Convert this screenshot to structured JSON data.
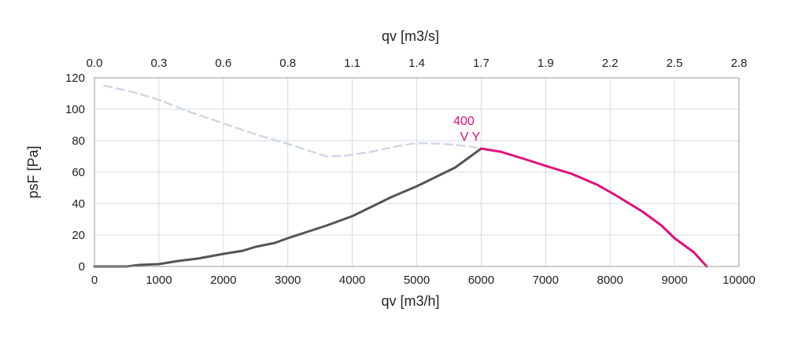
{
  "chart_data": {
    "type": "line",
    "x_label": "qv [m3/h]",
    "x2_label": "qv [m3/s]",
    "y_label": "psF [Pa]",
    "xlim": [
      0,
      10000
    ],
    "ylim": [
      0,
      120
    ],
    "x_ticks": [
      "0",
      "1000",
      "2000",
      "3000",
      "4000",
      "5000",
      "6000",
      "7000",
      "8000",
      "9000",
      "10000"
    ],
    "x2_ticks": [
      "0.0",
      "0.3",
      "0.6",
      "0.8",
      "1.1",
      "1.4",
      "1.7",
      "1.9",
      "2.2",
      "2.5",
      "2.8"
    ],
    "y_ticks": [
      "0",
      "20",
      "40",
      "60",
      "80",
      "100",
      "120"
    ],
    "grid": true,
    "annotation": {
      "line1": "400",
      "line2": "V Y",
      "x": 6000,
      "y": 75
    },
    "series": [
      {
        "role": "system-curve",
        "color": "#555555",
        "style": "solid",
        "points": [
          [
            0,
            0
          ],
          [
            500,
            0
          ],
          [
            700,
            1
          ],
          [
            1000,
            1.5
          ],
          [
            1300,
            3.5
          ],
          [
            1600,
            5
          ],
          [
            2000,
            8
          ],
          [
            2300,
            10
          ],
          [
            2500,
            12.5
          ],
          [
            2800,
            15
          ],
          [
            3000,
            18
          ],
          [
            3300,
            22
          ],
          [
            3600,
            26
          ],
          [
            4000,
            32
          ],
          [
            4300,
            38
          ],
          [
            4600,
            44
          ],
          [
            5000,
            51
          ],
          [
            5300,
            57
          ],
          [
            5600,
            63
          ],
          [
            6000,
            75
          ]
        ]
      },
      {
        "role": "fan-curve",
        "color": "#e0107a",
        "style": "solid",
        "points": [
          [
            6000,
            75
          ],
          [
            6300,
            73
          ],
          [
            6700,
            68
          ],
          [
            7000,
            64
          ],
          [
            7400,
            59
          ],
          [
            7800,
            52
          ],
          [
            8100,
            45
          ],
          [
            8500,
            35
          ],
          [
            8800,
            26
          ],
          [
            9000,
            18
          ],
          [
            9300,
            9
          ],
          [
            9500,
            0
          ]
        ]
      },
      {
        "role": "stall-region",
        "color": "#d0d8e6",
        "style": "dashed",
        "points": [
          [
            150,
            115
          ],
          [
            600,
            111
          ],
          [
            1000,
            106
          ],
          [
            1500,
            98
          ],
          [
            2000,
            91
          ],
          [
            2500,
            84
          ],
          [
            3000,
            78
          ],
          [
            3300,
            74
          ],
          [
            3600,
            70
          ],
          [
            3900,
            70.5
          ],
          [
            4300,
            73
          ],
          [
            4700,
            76.5
          ],
          [
            5000,
            78.5
          ],
          [
            5400,
            78
          ],
          [
            5800,
            76.5
          ],
          [
            6000,
            75
          ]
        ]
      }
    ]
  }
}
